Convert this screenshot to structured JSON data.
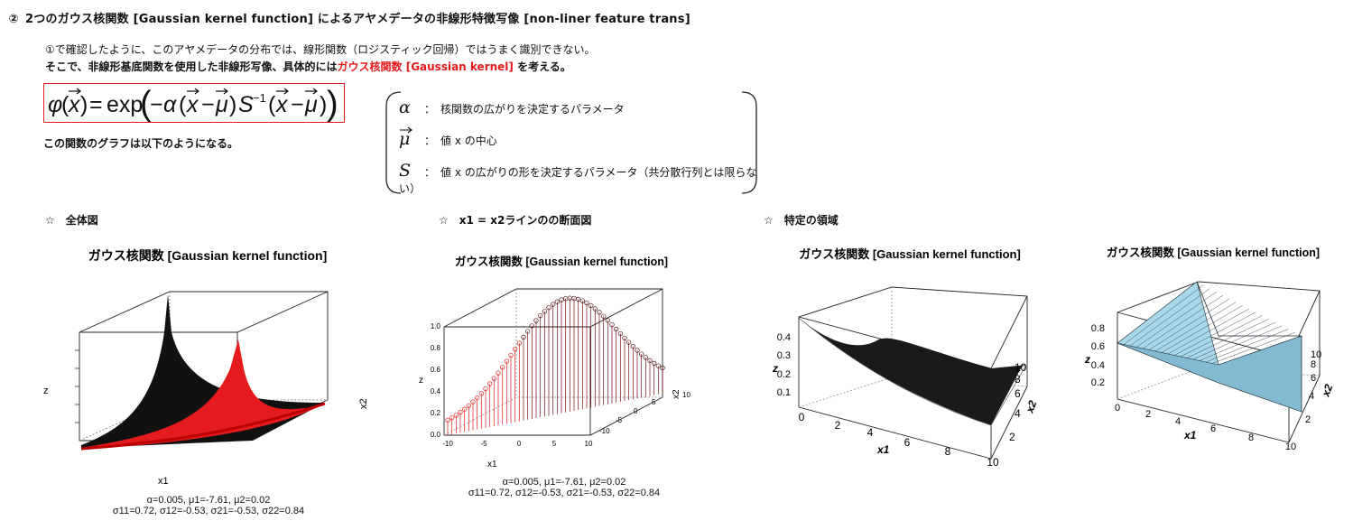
{
  "heading": {
    "marker": "②",
    "text": "2つのガウス核関数 [Gaussian kernel function] によるアヤメデータの非線形特徴写像 [non-liner feature trans]"
  },
  "intro": {
    "line1": "①で確認したように、このアヤメデータの分布では、線形関数（ロジスティック回帰）ではうまく識別できない。",
    "line2_prefix": "そこで、非線形基底関数を使用した非線形写像、具体的には",
    "line2_highlight": "ガウス核関数 [Gaussian kernel]",
    "line2_suffix": " を考える。"
  },
  "formula": {
    "phi": "φ",
    "x": "x",
    "eq": "=",
    "exp": "exp",
    "minus": "−",
    "alpha": "α",
    "mu": "μ",
    "S": "S",
    "inv": "−1"
  },
  "note": "この関数のグラフは以下のようになる。",
  "params": [
    {
      "symbol": "α",
      "colon": "：",
      "text": "核関数の広がりを決定するパラメータ"
    },
    {
      "symbol": "μ",
      "colon": "：",
      "text": "値 x の中心"
    },
    {
      "symbol": "S",
      "colon": "：",
      "text": "値 x の広がりの形を決定するパラメータ（共分散行列とは限らない）"
    }
  ],
  "sections": {
    "overall": "☆　全体図",
    "cross": "☆　x1 = x2ラインのの断面図",
    "region": "☆　特定の領域"
  },
  "plot_title": "ガウス核関数 [Gaussian kernel function]",
  "colors": {
    "accent": "#e41a1c",
    "surface_dark": "#111111",
    "stem_red": "#e41a1c",
    "mesh_blue": "#a8d8ea"
  },
  "plot1": {
    "xlabel": "x1",
    "ylabel": "x2",
    "zlabel": "z",
    "caption1": "α=0.005, μ1=-7.61, μ2=0.02",
    "caption2": "σ11=0.72, σ12=-0.53, σ21=-0.53, σ22=0.84"
  },
  "plot2": {
    "xlabel": "x1",
    "ylabel": "x2",
    "zlabel": "z",
    "zticks": [
      "0.0",
      "0.2",
      "0.4",
      "0.6",
      "0.8",
      "1.0"
    ],
    "xticks": [
      "-10",
      "-5",
      "0",
      "5",
      "10"
    ],
    "yticks": [
      "-10",
      "-5",
      "0",
      "5",
      "10"
    ],
    "caption1": "α=0.005, μ1=-7.61, μ2=0.02",
    "caption2": "σ11=0.72, σ12=-0.53, σ21=-0.53, σ22=0.84"
  },
  "plot3": {
    "xlabel": "x1",
    "ylabel": "x2",
    "zlabel": "z",
    "zticks": [
      "0.1",
      "0.2",
      "0.3",
      "0.4"
    ],
    "xticks": [
      "0",
      "2",
      "4",
      "6",
      "8",
      "10"
    ],
    "yticks": [
      "2",
      "4",
      "6",
      "8",
      "10"
    ]
  },
  "plot4": {
    "xlabel": "x1",
    "ylabel": "x2",
    "zlabel": "z",
    "zticks": [
      "0.2",
      "0.4",
      "0.6",
      "0.8"
    ],
    "xticks": [
      "0",
      "2",
      "4",
      "6",
      "8",
      "10"
    ],
    "yticks": [
      "2",
      "4",
      "6",
      "8",
      "10"
    ]
  }
}
